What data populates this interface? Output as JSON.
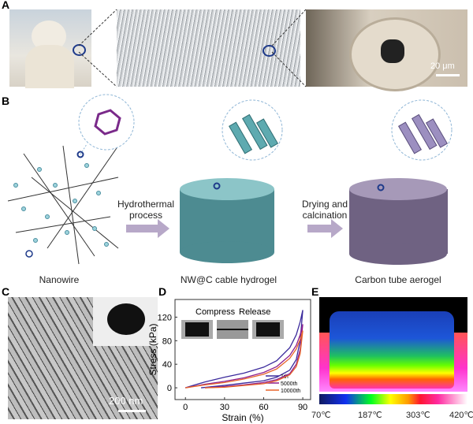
{
  "panels": {
    "A": {
      "label": "A",
      "scale_bar": "20 μm"
    },
    "B": {
      "label": "B",
      "stage1": "Nanowire",
      "arrow1": "Hydrothermal process",
      "arrow1_l1": "Hydrothermal",
      "arrow1_l2": "process",
      "stage2": "NW@C cable hydrogel",
      "arrow2_l1": "Drying and",
      "arrow2_l2": "calcination",
      "stage3": "Carbon tube aerogel"
    },
    "C": {
      "label": "C",
      "scale_bar": "200 nm"
    },
    "D": {
      "label": "D"
    },
    "E": {
      "label": "E",
      "colorbar_ticks": [
        "70℃",
        "187℃",
        "303℃",
        "420℃"
      ]
    }
  },
  "chart_data": {
    "type": "line",
    "xlabel": "Strain (%)",
    "ylabel": "Stress (kPa)",
    "xlim": [
      -8,
      96
    ],
    "ylim": [
      -20,
      150
    ],
    "xticks": [
      0,
      30,
      60,
      90
    ],
    "yticks": [
      0,
      40,
      80,
      120
    ],
    "inset_labels": {
      "compress": "Compress",
      "release": "Release"
    },
    "legend_position": "bottom-right",
    "series": [
      {
        "name": "1th",
        "color": "#3b2a9c",
        "loading": [
          [
            0,
            0
          ],
          [
            15,
            10
          ],
          [
            30,
            18
          ],
          [
            45,
            25
          ],
          [
            60,
            35
          ],
          [
            70,
            46
          ],
          [
            80,
            68
          ],
          [
            85,
            90
          ],
          [
            88,
            112
          ],
          [
            90,
            132
          ]
        ],
        "unloading": [
          [
            90,
            132
          ],
          [
            88,
            80
          ],
          [
            85,
            48
          ],
          [
            80,
            30
          ],
          [
            70,
            18
          ],
          [
            60,
            12
          ],
          [
            45,
            8
          ],
          [
            30,
            4
          ],
          [
            12,
            0
          ]
        ]
      },
      {
        "name": "5000th",
        "color": "#8e1f8e",
        "loading": [
          [
            0,
            0
          ],
          [
            15,
            6
          ],
          [
            30,
            11
          ],
          [
            45,
            17
          ],
          [
            60,
            26
          ],
          [
            70,
            36
          ],
          [
            80,
            55
          ],
          [
            85,
            72
          ],
          [
            88,
            90
          ],
          [
            90,
            108
          ]
        ],
        "unloading": [
          [
            90,
            108
          ],
          [
            88,
            65
          ],
          [
            85,
            40
          ],
          [
            80,
            24
          ],
          [
            70,
            14
          ],
          [
            60,
            9
          ],
          [
            45,
            5
          ],
          [
            30,
            2
          ],
          [
            15,
            0
          ]
        ]
      },
      {
        "name": "10000th",
        "color": "#e8642a",
        "loading": [
          [
            0,
            0
          ],
          [
            15,
            5
          ],
          [
            30,
            9
          ],
          [
            45,
            15
          ],
          [
            60,
            23
          ],
          [
            70,
            32
          ],
          [
            80,
            50
          ],
          [
            85,
            66
          ],
          [
            88,
            82
          ],
          [
            90,
            97
          ]
        ],
        "unloading": [
          [
            90,
            97
          ],
          [
            88,
            58
          ],
          [
            85,
            36
          ],
          [
            80,
            22
          ],
          [
            70,
            12
          ],
          [
            60,
            7
          ],
          [
            45,
            4
          ],
          [
            30,
            1
          ],
          [
            15,
            0
          ]
        ]
      }
    ]
  }
}
